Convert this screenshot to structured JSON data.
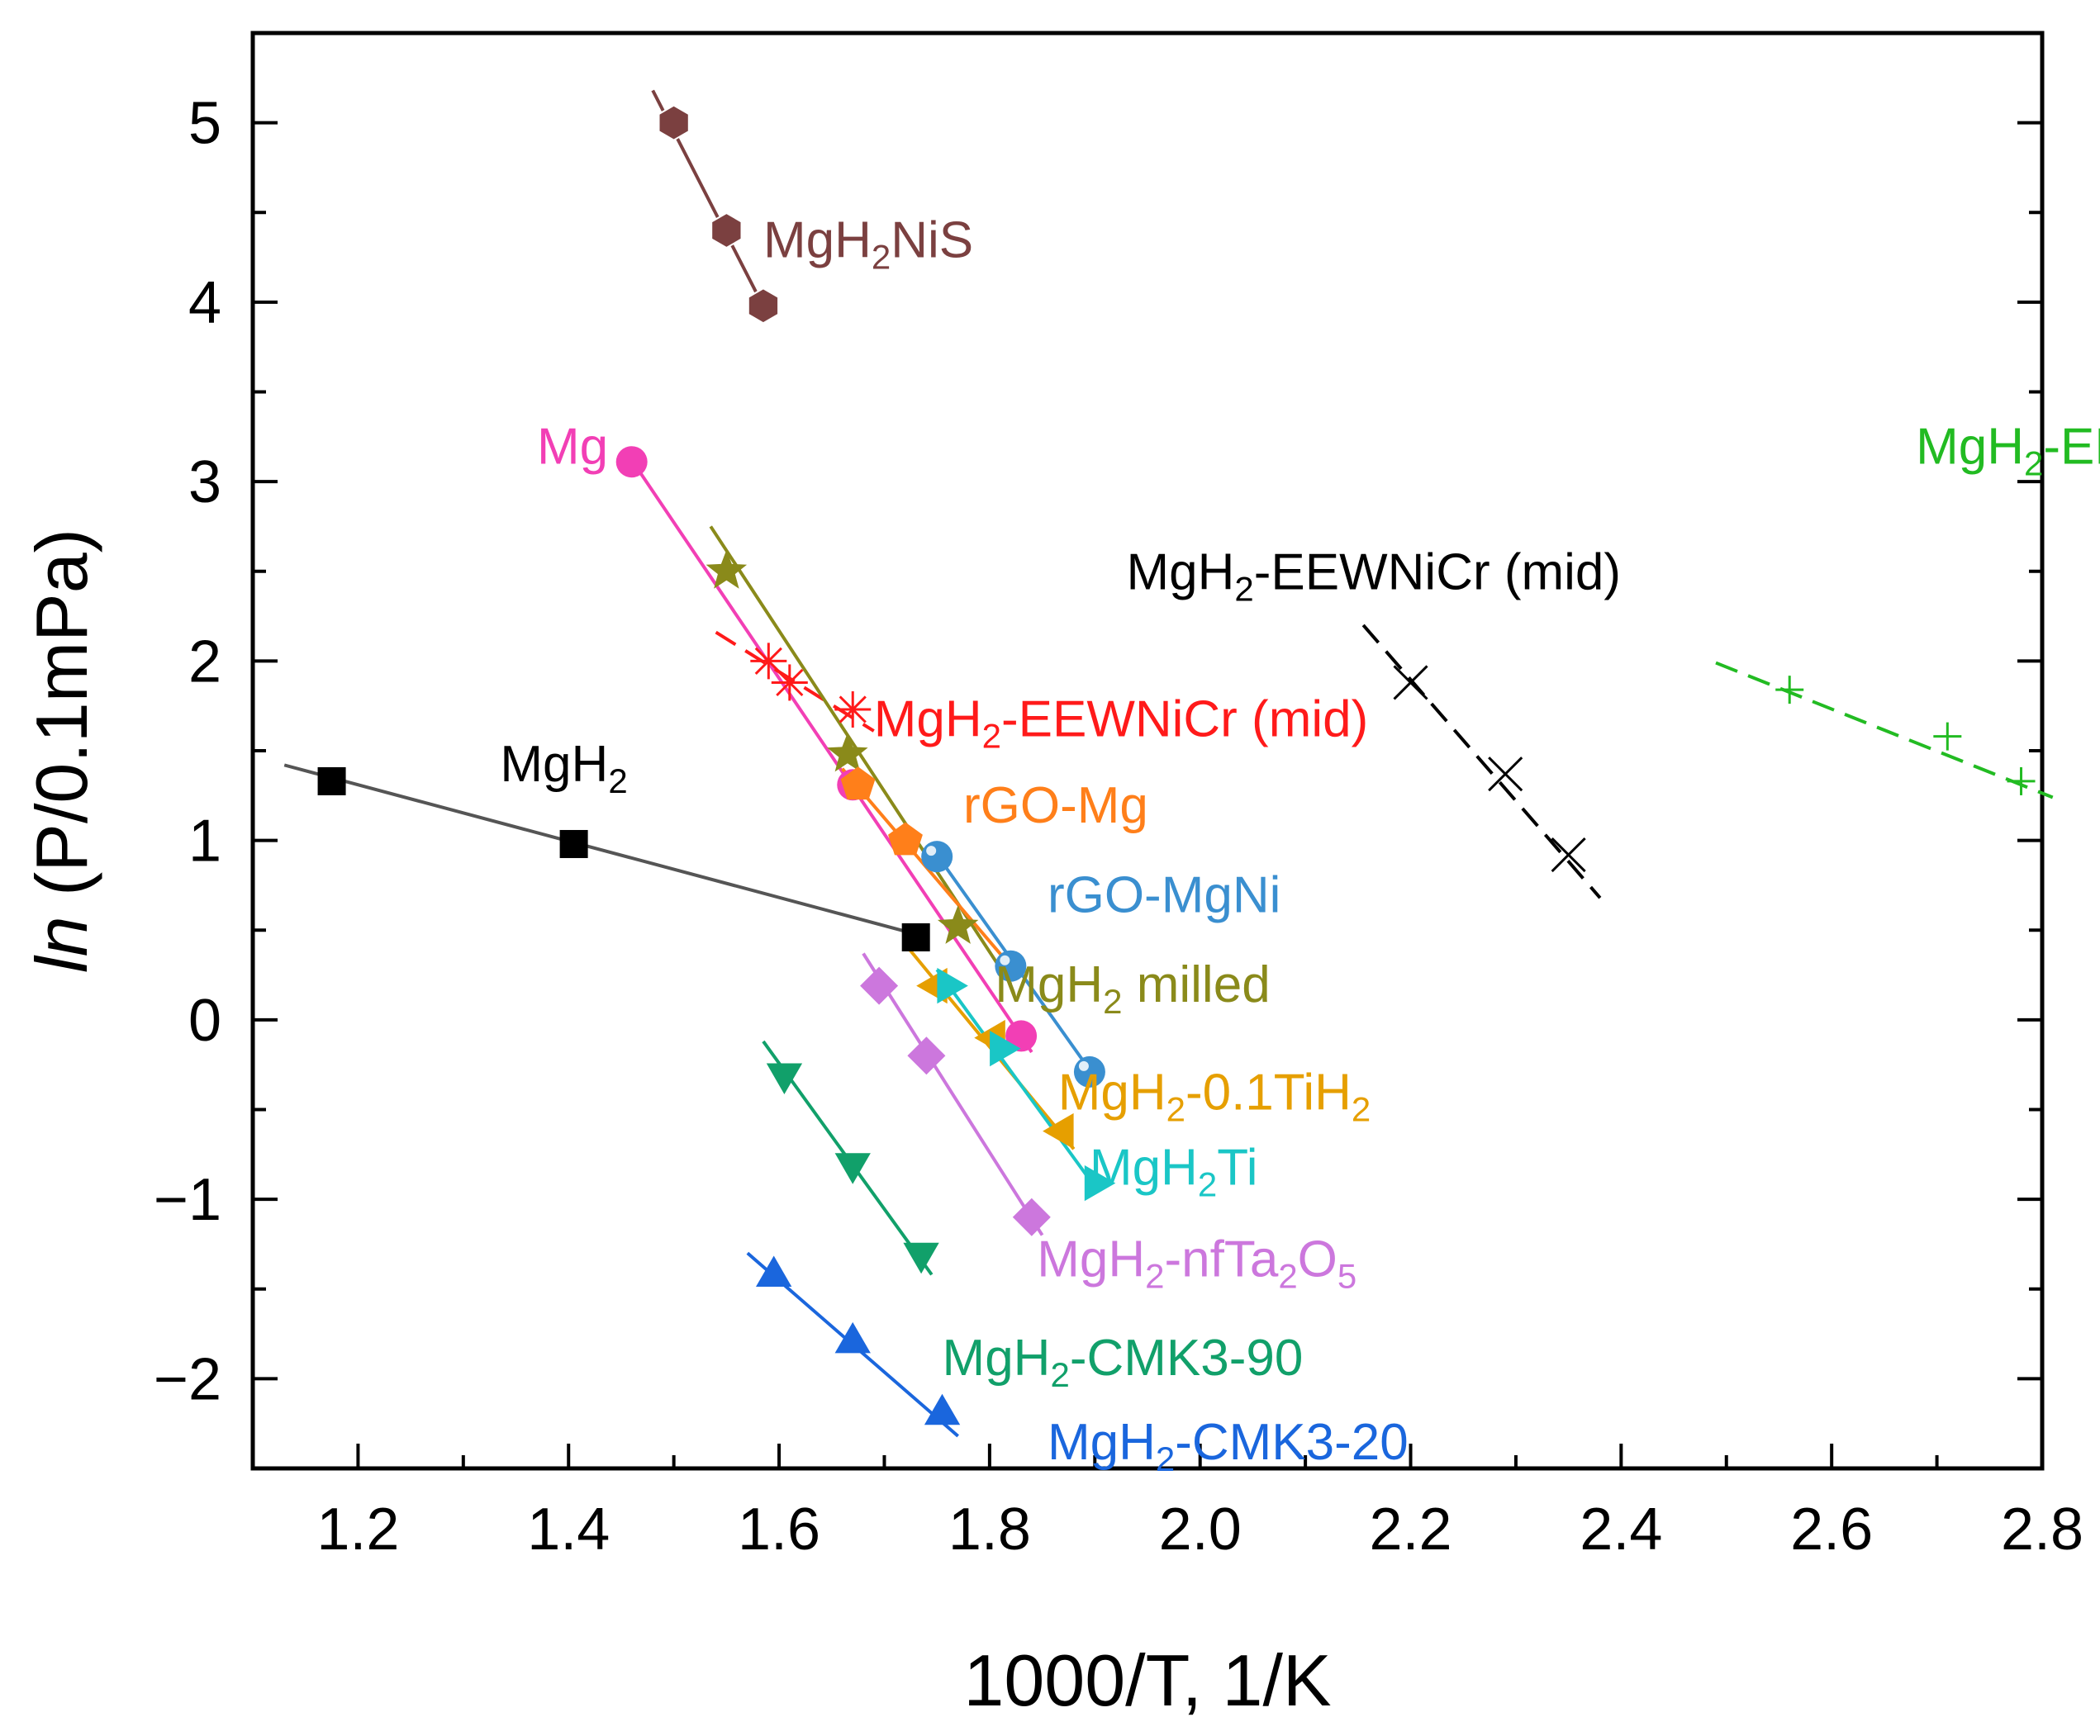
{
  "chart_data": {
    "type": "scatter",
    "title": "",
    "xlabel": "1000/T, 1/K",
    "ylabel_italic": "ln",
    "ylabel_rest": " (P/0.1mPa)",
    "xlim": [
      1.1,
      2.8
    ],
    "ylim": [
      -2.5,
      5.5
    ],
    "xticks": [
      {
        "value": 1.2,
        "label": "1.2"
      },
      {
        "value": 1.4,
        "label": "1.4"
      },
      {
        "value": 1.6,
        "label": "1.6"
      },
      {
        "value": 1.8,
        "label": "1.8"
      },
      {
        "value": 2.0,
        "label": "2.0"
      },
      {
        "value": 2.2,
        "label": "2.2"
      },
      {
        "value": 2.4,
        "label": "2.4"
      },
      {
        "value": 2.6,
        "label": "2.6"
      },
      {
        "value": 2.8,
        "label": "2.8"
      }
    ],
    "yticks": [
      {
        "value": -2,
        "label": "−2"
      },
      {
        "value": -1,
        "label": "−1"
      },
      {
        "value": 0,
        "label": "0"
      },
      {
        "value": 1,
        "label": "1"
      },
      {
        "value": 2,
        "label": "2"
      },
      {
        "value": 3,
        "label": "3"
      },
      {
        "value": 4,
        "label": "4"
      },
      {
        "value": 5,
        "label": "5"
      }
    ],
    "series": [
      {
        "key": "mgh2nis",
        "color": "#7b4040",
        "marker": "hexagon",
        "line": "solid",
        "label": [
          {
            "t": "MgH"
          },
          {
            "t": "2",
            "sub": true
          },
          {
            "t": "NiS"
          }
        ],
        "x": [
          1.5,
          1.55,
          1.585
        ],
        "y": [
          5.0,
          4.4,
          3.98
        ],
        "fit_x": [
          1.48,
          1.59
        ],
        "fit_y": [
          5.18,
          3.92
        ],
        "label_at": [
          1.585,
          4.25
        ]
      },
      {
        "key": "mg",
        "color": "#f23fb5",
        "marker": "circle",
        "line": "solid",
        "label": [
          {
            "t": "Mg"
          }
        ],
        "x": [
          1.46,
          1.67,
          1.83
        ],
        "y": [
          3.11,
          1.31,
          -0.09
        ],
        "fit_x": [
          1.46,
          1.84
        ],
        "fit_y": [
          3.12,
          -0.18
        ],
        "label_at": [
          1.37,
          3.1
        ]
      },
      {
        "key": "eewmid_red",
        "color": "#ff1a1a",
        "marker": "asterisk",
        "line": "dashed",
        "label": [
          {
            "t": "MgH"
          },
          {
            "t": "2",
            "sub": true
          },
          {
            "t": "-EEWNiCr (mid)"
          }
        ],
        "x": [
          1.59,
          1.61,
          1.67
        ],
        "y": [
          2.0,
          1.88,
          1.73
        ],
        "fit_x": [
          1.54,
          1.69
        ],
        "fit_y": [
          2.16,
          1.61
        ],
        "label_at": [
          1.69,
          1.58
        ]
      },
      {
        "key": "mgh2milled",
        "color": "#8a8a1a",
        "marker": "star",
        "line": "solid",
        "label": [
          {
            "t": "MgH"
          },
          {
            "t": "2",
            "sub": true
          },
          {
            "t": " milled"
          }
        ],
        "x": [
          1.55,
          1.665,
          1.77
        ],
        "y": [
          2.5,
          1.48,
          0.52
        ],
        "fit_x": [
          1.535,
          1.82
        ],
        "fit_y": [
          2.75,
          0.2
        ],
        "label_at": [
          1.805,
          0.1
        ]
      },
      {
        "key": "rgomg",
        "color": "#ff7f1a",
        "marker": "pentagon",
        "line": "solid",
        "label": [
          {
            "t": "rGO-Mg"
          }
        ],
        "x": [
          1.675,
          1.72
        ],
        "y": [
          1.31,
          1.0
        ],
        "fit_x": [
          1.66,
          1.82
        ],
        "fit_y": [
          1.4,
          0.3
        ],
        "label_at": [
          1.775,
          1.1
        ]
      },
      {
        "key": "rgomgni",
        "color": "#3a8fd0",
        "marker": "sphere",
        "line": "solid",
        "label": [
          {
            "t": "rGO-MgNi"
          }
        ],
        "x": [
          1.75,
          1.82,
          1.895
        ],
        "y": [
          0.91,
          0.3,
          -0.29
        ],
        "fit_x": [
          1.75,
          1.9
        ],
        "fit_y": [
          0.92,
          -0.32
        ],
        "label_at": [
          1.855,
          0.6
        ]
      },
      {
        "key": "mgh2",
        "color": "#000000",
        "marker": "square",
        "line": "solid",
        "linecolor": "#555555",
        "label": [
          {
            "t": "MgH"
          },
          {
            "t": "2",
            "sub": true
          }
        ],
        "x": [
          1.175,
          1.405,
          1.73
        ],
        "y": [
          1.33,
          0.98,
          0.46
        ],
        "fit_x": [
          1.13,
          1.735
        ],
        "fit_y": [
          1.42,
          0.47
        ],
        "label_at": [
          1.335,
          1.33
        ]
      },
      {
        "key": "eewmid_black",
        "color": "#000000",
        "marker": "cross",
        "line": "dashed",
        "label": [
          {
            "t": "MgH"
          },
          {
            "t": "2",
            "sub": true
          },
          {
            "t": "-EEWNiCr (mid)"
          }
        ],
        "x": [
          2.2,
          2.29,
          2.35
        ],
        "y": [
          1.88,
          1.37,
          0.92
        ],
        "fit_x": [
          2.155,
          2.38
        ],
        "fit_y": [
          2.2,
          0.68
        ],
        "label_at": [
          1.93,
          2.4
        ]
      },
      {
        "key": "eewlow",
        "color": "#22bb22",
        "marker": "plus",
        "line": "dashed",
        "label": [
          {
            "t": "MgH"
          },
          {
            "t": "2",
            "sub": true
          },
          {
            "t": "-EEWNiCr (low)"
          }
        ],
        "x": [
          2.56,
          2.71,
          2.78
        ],
        "y": [
          1.84,
          1.58,
          1.33
        ],
        "fit_x": [
          2.49,
          2.81
        ],
        "fit_y": [
          1.99,
          1.24
        ],
        "label_at": [
          2.68,
          3.1
        ]
      },
      {
        "key": "tih2",
        "color": "#e69f00",
        "marker": "triangle-left",
        "line": "solid",
        "label": [
          {
            "t": "MgH"
          },
          {
            "t": "2",
            "sub": true
          },
          {
            "t": "-0.1TiH"
          },
          {
            "t": "2",
            "sub": true
          }
        ],
        "x": [
          1.75,
          1.805,
          1.87
        ],
        "y": [
          0.19,
          -0.1,
          -0.62
        ],
        "fit_x": [
          1.72,
          1.88
        ],
        "fit_y": [
          0.42,
          -0.72
        ],
        "label_at": [
          1.865,
          -0.5
        ]
      },
      {
        "key": "mgh2ti",
        "color": "#1ac6c6",
        "marker": "triangle-right",
        "line": "solid",
        "label": [
          {
            "t": "MgH"
          },
          {
            "t": "2",
            "sub": true
          },
          {
            "t": "Ti"
          }
        ],
        "x": [
          1.76,
          1.81,
          1.9
        ],
        "y": [
          0.19,
          -0.16,
          -0.91
        ],
        "fit_x": [
          1.75,
          1.9
        ],
        "fit_y": [
          0.28,
          -0.93
        ],
        "label_at": [
          1.895,
          -0.92
        ]
      },
      {
        "key": "ta2o5",
        "color": "#cc77dd",
        "marker": "diamond",
        "line": "solid",
        "label": [
          {
            "t": "MgH"
          },
          {
            "t": "2",
            "sub": true
          },
          {
            "t": "-nfTa"
          },
          {
            "t": "2",
            "sub": true
          },
          {
            "t": "O"
          },
          {
            "t": "5",
            "sub": true
          }
        ],
        "x": [
          1.695,
          1.74,
          1.84
        ],
        "y": [
          0.19,
          -0.2,
          -1.1
        ],
        "fit_x": [
          1.68,
          1.85
        ],
        "fit_y": [
          0.37,
          -1.2
        ],
        "label_at": [
          1.845,
          -1.43
        ]
      },
      {
        "key": "cmk90",
        "color": "#11a06a",
        "marker": "triangle-down",
        "line": "solid",
        "label": [
          {
            "t": "MgH"
          },
          {
            "t": "2",
            "sub": true
          },
          {
            "t": "-CMK3-90"
          }
        ],
        "x": [
          1.605,
          1.67,
          1.735
        ],
        "y": [
          -0.3,
          -0.8,
          -1.3
        ],
        "fit_x": [
          1.585,
          1.745
        ],
        "fit_y": [
          -0.12,
          -1.42
        ],
        "label_at": [
          1.755,
          -1.98
        ]
      },
      {
        "key": "cmk20",
        "color": "#1a66dd",
        "marker": "triangle-up",
        "line": "solid",
        "label": [
          {
            "t": "MgH"
          },
          {
            "t": "2",
            "sub": true
          },
          {
            "t": "-CMK3-20"
          }
        ],
        "x": [
          1.595,
          1.67,
          1.755
        ],
        "y": [
          -1.43,
          -1.8,
          -2.2
        ],
        "fit_x": [
          1.57,
          1.77
        ],
        "fit_y": [
          -1.3,
          -2.32
        ],
        "label_at": [
          1.855,
          -2.45
        ]
      }
    ]
  }
}
